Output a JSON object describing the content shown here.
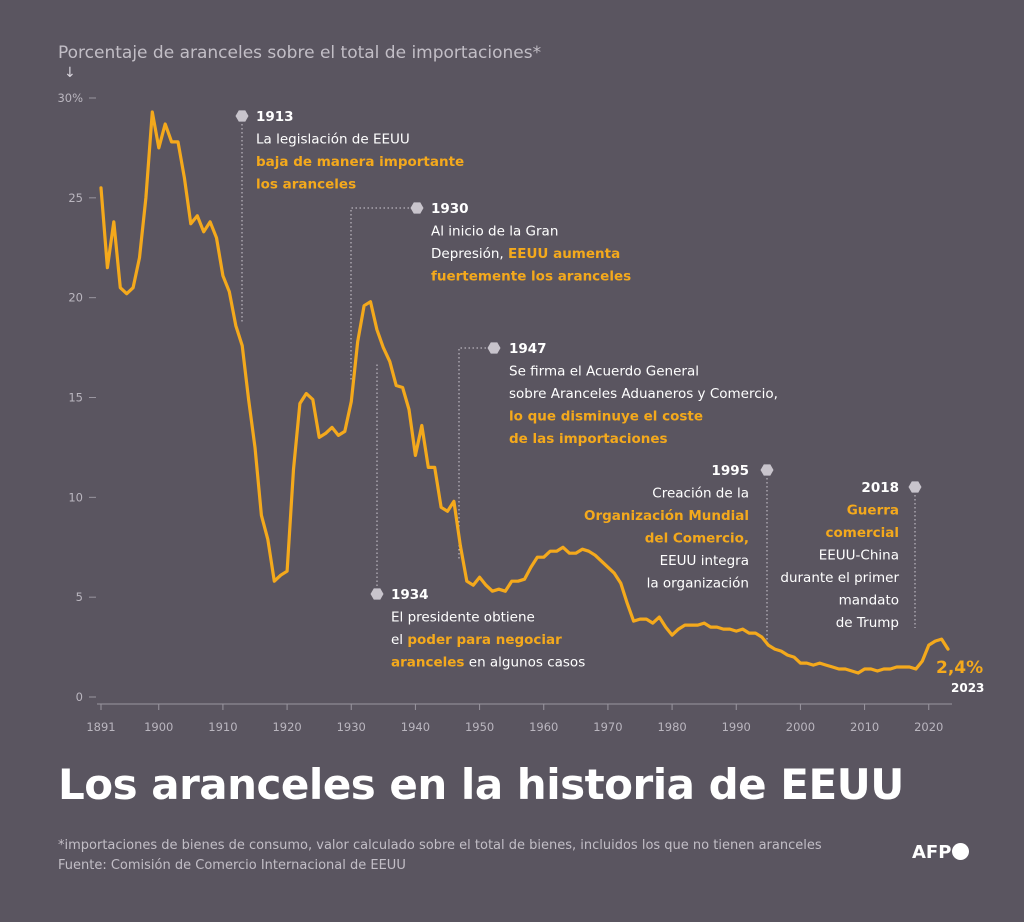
{
  "header": {
    "subtitle": "Porcentaje de aranceles sobre el total de importaciones*",
    "arrow": "↓"
  },
  "title": "Los aranceles en la historia de EEUU",
  "footnote": {
    "note": "*importaciones de bienes de consumo, valor calculado sobre el total de bienes, incluidos los que no tienen aranceles",
    "source": "Fuente: Comisión de Comercio Internacional de EEUU"
  },
  "logo": "AFP",
  "colors": {
    "background": "#5a5560",
    "line": "#f4a91c",
    "highlight": "#f4a91c",
    "text": "#ffffff",
    "muted": "#c2bec6",
    "marker": "#c8c4cc"
  },
  "chart_data": {
    "type": "line",
    "title": "Los aranceles en la historia de EEUU",
    "ylabel": "Porcentaje de aranceles sobre el total de importaciones*",
    "xlabel": "",
    "xlim": [
      1891,
      2023
    ],
    "ylim": [
      0,
      30
    ],
    "y_ticks": [
      "0",
      "5",
      "10",
      "15",
      "20",
      "25",
      "30%"
    ],
    "x_ticks": [
      "1891",
      "1900",
      "1910",
      "1920",
      "1930",
      "1940",
      "1950",
      "1960",
      "1970",
      "1980",
      "1990",
      "2000",
      "2010",
      "2020"
    ],
    "y_tick_values": [
      0,
      5,
      10,
      15,
      20,
      25,
      30
    ],
    "x_tick_values": [
      1891,
      1900,
      1910,
      1920,
      1930,
      1940,
      1950,
      1960,
      1970,
      1980,
      1990,
      2000,
      2010,
      2020
    ],
    "grid": false,
    "legend": "none",
    "x": [
      1891,
      1892,
      1893,
      1894,
      1895,
      1896,
      1897,
      1898,
      1899,
      1900,
      1901,
      1902,
      1903,
      1904,
      1905,
      1906,
      1907,
      1908,
      1909,
      1910,
      1911,
      1912,
      1913,
      1914,
      1915,
      1916,
      1917,
      1918,
      1919,
      1920,
      1921,
      1922,
      1923,
      1924,
      1925,
      1926,
      1927,
      1928,
      1929,
      1930,
      1931,
      1932,
      1933,
      1934,
      1935,
      1936,
      1937,
      1938,
      1939,
      1940,
      1941,
      1942,
      1943,
      1944,
      1945,
      1946,
      1947,
      1948,
      1949,
      1950,
      1951,
      1952,
      1953,
      1954,
      1955,
      1956,
      1957,
      1958,
      1959,
      1960,
      1961,
      1962,
      1963,
      1964,
      1965,
      1966,
      1967,
      1968,
      1969,
      1970,
      1971,
      1972,
      1973,
      1974,
      1975,
      1976,
      1977,
      1978,
      1979,
      1980,
      1981,
      1982,
      1983,
      1984,
      1985,
      1986,
      1987,
      1988,
      1989,
      1990,
      1991,
      1992,
      1993,
      1994,
      1995,
      1996,
      1997,
      1998,
      1999,
      2000,
      2001,
      2002,
      2003,
      2004,
      2005,
      2006,
      2007,
      2008,
      2009,
      2010,
      2011,
      2012,
      2013,
      2014,
      2015,
      2016,
      2017,
      2018,
      2019,
      2020,
      2021,
      2022,
      2023
    ],
    "values": [
      25.5,
      21.5,
      23.8,
      20.5,
      20.2,
      20.5,
      22,
      25,
      29.3,
      27.5,
      28.7,
      27.8,
      27.8,
      26,
      23.7,
      24.1,
      23.3,
      23.8,
      23,
      21.1,
      20.3,
      18.6,
      17.6,
      14.9,
      12.5,
      9.1,
      7.9,
      5.8,
      6.1,
      6.3,
      11.4,
      14.7,
      15.2,
      14.9,
      13.0,
      13.2,
      13.5,
      13.1,
      13.3,
      14.8,
      17.8,
      19.6,
      19.8,
      18.4,
      17.5,
      16.8,
      15.6,
      15.5,
      14.4,
      12.1,
      13.6,
      11.5,
      11.5,
      9.5,
      9.3,
      9.8,
      7.6,
      5.8,
      5.6,
      6.0,
      5.6,
      5.3,
      5.4,
      5.3,
      5.8,
      5.8,
      5.9,
      6.5,
      7.0,
      7.0,
      7.3,
      7.3,
      7.5,
      7.2,
      7.2,
      7.4,
      7.3,
      7.1,
      6.8,
      6.5,
      6.2,
      5.7,
      4.7,
      3.8,
      3.9,
      3.9,
      3.7,
      4.0,
      3.5,
      3.1,
      3.4,
      3.6,
      3.6,
      3.6,
      3.7,
      3.5,
      3.5,
      3.4,
      3.4,
      3.3,
      3.4,
      3.2,
      3.2,
      3.0,
      2.6,
      2.4,
      2.3,
      2.1,
      2.0,
      1.7,
      1.7,
      1.6,
      1.7,
      1.6,
      1.5,
      1.4,
      1.4,
      1.3,
      1.2,
      1.4,
      1.4,
      1.3,
      1.4,
      1.4,
      1.5,
      1.5,
      1.5,
      1.4,
      1.8,
      2.6,
      2.8,
      2.9,
      2.4
    ],
    "end_label": "2,4%",
    "end_year_label": "2023",
    "annotations": [
      {
        "year": "1913",
        "lines": [
          [
            {
              "t": "La legislación de EEUU",
              "h": false
            }
          ],
          [
            {
              "t": "baja de manera importante",
              "h": true
            }
          ],
          [
            {
              "t": "los aranceles",
              "h": true
            }
          ]
        ]
      },
      {
        "year": "1930",
        "lines": [
          [
            {
              "t": "Al inicio de la Gran",
              "h": false
            }
          ],
          [
            {
              "t": "Depresión, ",
              "h": false
            },
            {
              "t": "EEUU aumenta",
              "h": true
            }
          ],
          [
            {
              "t": "fuertemente los aranceles",
              "h": true
            }
          ]
        ]
      },
      {
        "year": "1934",
        "lines": [
          [
            {
              "t": "El presidente obtiene",
              "h": false
            }
          ],
          [
            {
              "t": "el ",
              "h": false
            },
            {
              "t": "poder para negociar",
              "h": true
            }
          ],
          [
            {
              "t": "aranceles",
              "h": true
            },
            {
              "t": " en algunos casos",
              "h": false
            }
          ]
        ]
      },
      {
        "year": "1947",
        "lines": [
          [
            {
              "t": "Se firma el Acuerdo General",
              "h": false
            }
          ],
          [
            {
              "t": "sobre Aranceles Aduaneros y Comercio,",
              "h": false
            }
          ],
          [
            {
              "t": "lo que disminuye el coste",
              "h": true
            }
          ],
          [
            {
              "t": "de las importaciones",
              "h": true
            }
          ]
        ]
      },
      {
        "year": "1995",
        "lines": [
          [
            {
              "t": "Creación de la",
              "h": false
            }
          ],
          [
            {
              "t": "Organización Mundial",
              "h": true
            }
          ],
          [
            {
              "t": "del Comercio,",
              "h": true
            }
          ],
          [
            {
              "t": "EEUU integra",
              "h": false
            }
          ],
          [
            {
              "t": "la organización",
              "h": false
            }
          ]
        ]
      },
      {
        "year": "2018",
        "lines": [
          [
            {
              "t": "Guerra",
              "h": true
            }
          ],
          [
            {
              "t": "comercial",
              "h": true
            }
          ],
          [
            {
              "t": "EEUU-China",
              "h": false
            }
          ],
          [
            {
              "t": "durante el primer",
              "h": false
            }
          ],
          [
            {
              "t": "mandato",
              "h": false
            }
          ],
          [
            {
              "t": "de Trump",
              "h": false
            }
          ]
        ]
      }
    ]
  }
}
